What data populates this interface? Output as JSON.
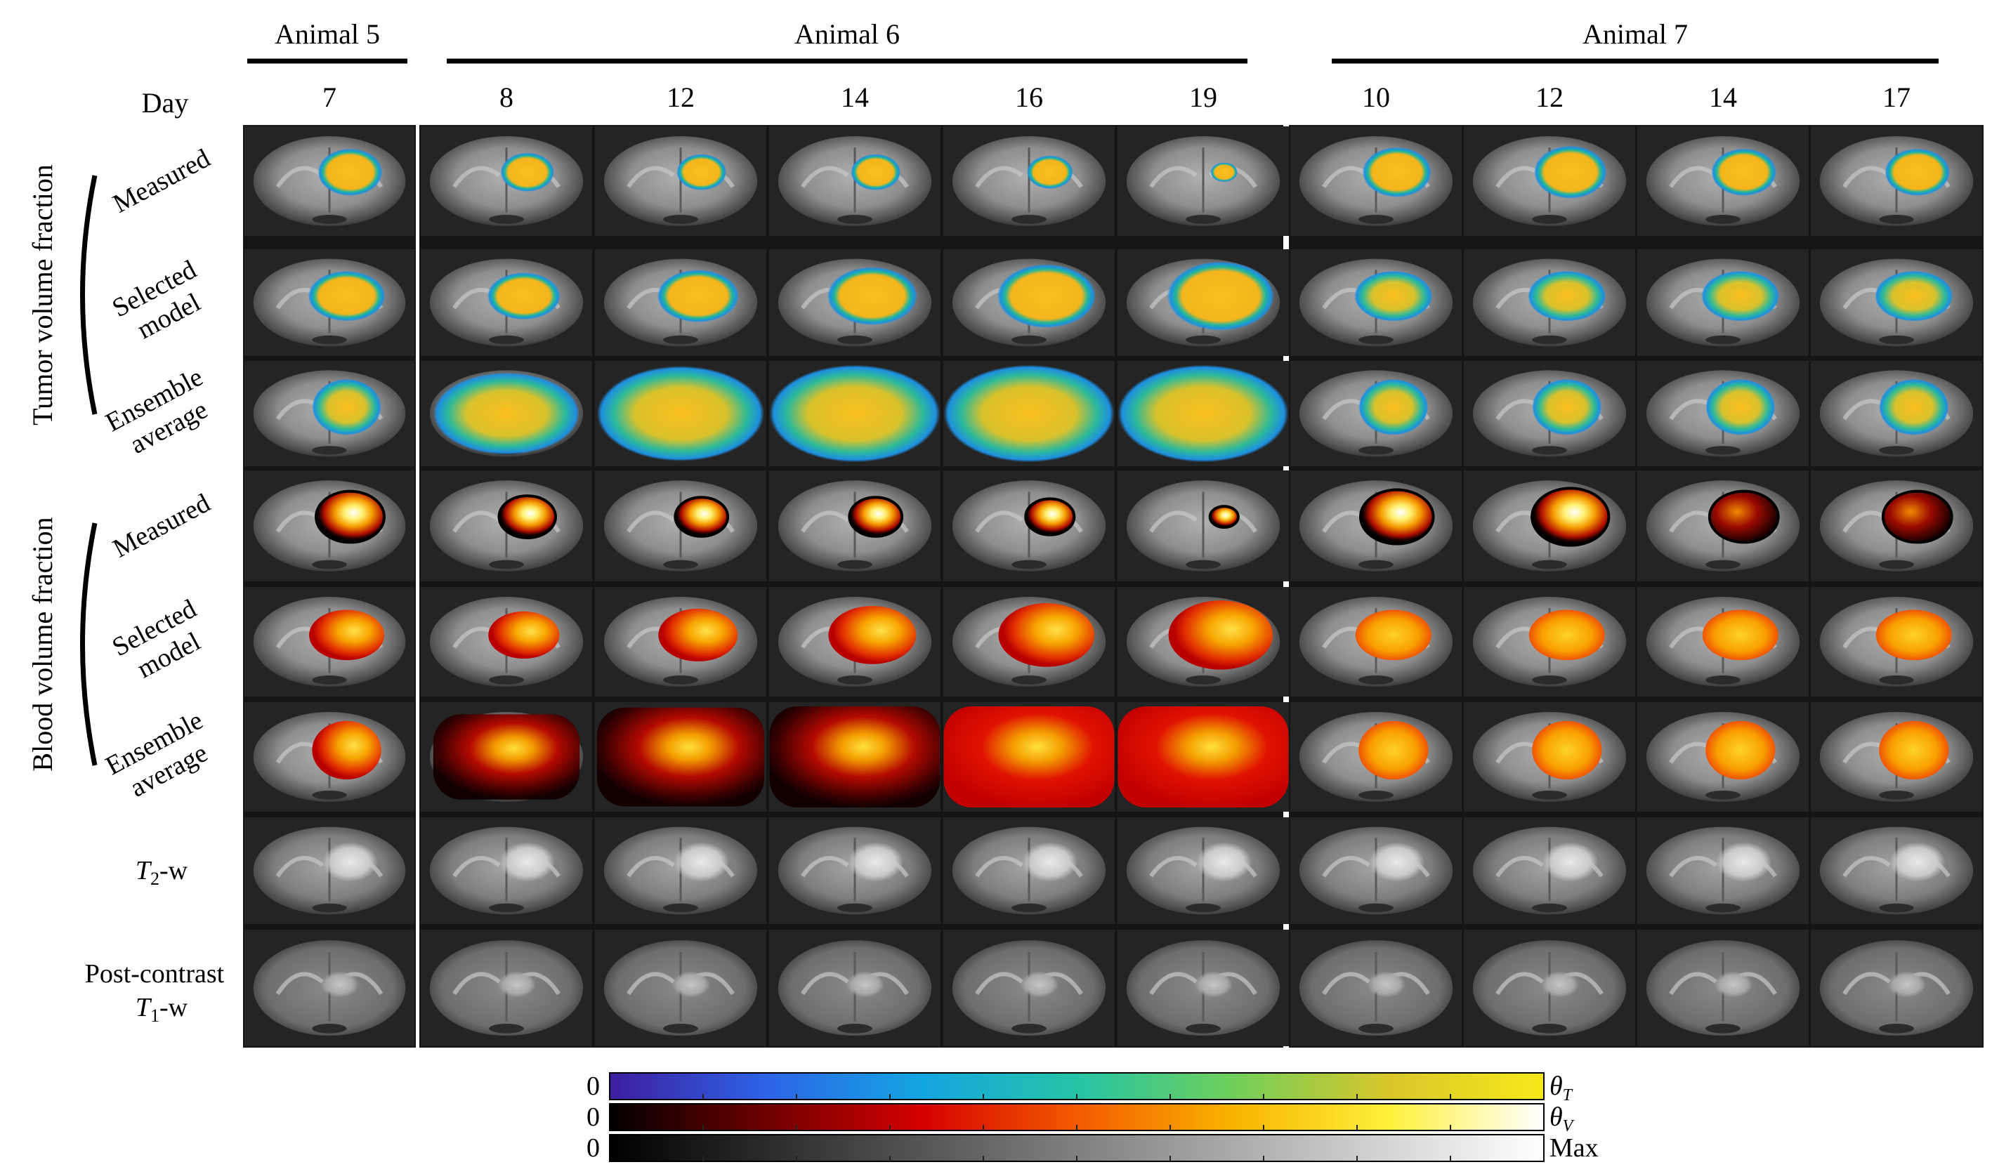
{
  "animals": [
    {
      "label": "Animal 5",
      "days": [
        "7"
      ]
    },
    {
      "label": "Animal 6",
      "days": [
        "8",
        "12",
        "14",
        "16",
        "19"
      ]
    },
    {
      "label": "Animal 7",
      "days": [
        "10",
        "12",
        "14",
        "17"
      ]
    }
  ],
  "day_label": "Day",
  "groups": {
    "tumor": "Tumor volume fraction",
    "blood": "Blood volume fraction"
  },
  "rows": [
    {
      "id": "tvf-measured",
      "lines": [
        "Measured"
      ],
      "kind": "tumor"
    },
    {
      "id": "tvf-selected",
      "lines": [
        "Selected",
        "model"
      ],
      "kind": "tumor"
    },
    {
      "id": "tvf-ensemble",
      "lines": [
        "Ensemble",
        "average"
      ],
      "kind": "tumor"
    },
    {
      "id": "bvf-measured",
      "lines": [
        "Measured"
      ],
      "kind": "blood"
    },
    {
      "id": "bvf-selected",
      "lines": [
        "Selected",
        "model"
      ],
      "kind": "blood"
    },
    {
      "id": "bvf-ensemble",
      "lines": [
        "Ensemble",
        "average"
      ],
      "kind": "blood"
    },
    {
      "id": "t2w",
      "lines": [
        "T2-w"
      ],
      "kind": "t2"
    },
    {
      "id": "t1w",
      "lines": [
        "Post-contrast",
        "T1-w"
      ],
      "kind": "t1"
    }
  ],
  "t2_label": {
    "main": "T",
    "sub": "2",
    "suffix": "-w"
  },
  "t1_label": {
    "line1": "Post-contrast",
    "main": "T",
    "sub": "1",
    "suffix": "-w"
  },
  "colorbars": [
    {
      "zero": "0",
      "name": "θ",
      "sub": "T",
      "stops": [
        "#3d1e9e",
        "#2d63e6",
        "#14a5e2",
        "#25c4a6",
        "#6fcf5a",
        "#d8c62b",
        "#f7e81a"
      ]
    },
    {
      "zero": "0",
      "name": "θ",
      "sub": "V",
      "stops": [
        "#000000",
        "#6e0000",
        "#d40000",
        "#f35a00",
        "#f8b300",
        "#fdf03a",
        "#ffffff"
      ]
    },
    {
      "zero": "0",
      "name": "Max",
      "sub": "",
      "stops": [
        "#000000",
        "#ffffff"
      ]
    }
  ],
  "colors": {
    "tumor_core": "#fbbc1e",
    "tumor_ring_inner": "#21b59a",
    "tumor_ring_outer": "#1e8fe0",
    "blood_hot": "#ffffff",
    "blood_mid": "#f6b000",
    "blood_low": "#b00000"
  },
  "measured_tumor_size": [
    [
      0.34
    ],
    [
      0.28,
      0.26,
      0.26,
      0.24,
      0.14
    ],
    [
      0.36,
      0.38,
      0.34,
      0.34
    ]
  ]
}
